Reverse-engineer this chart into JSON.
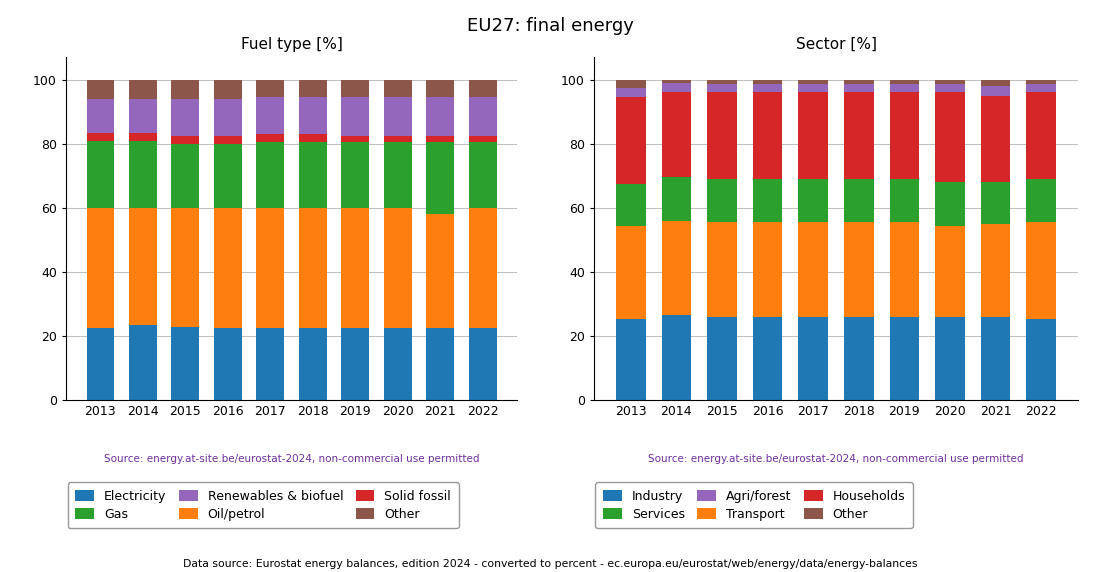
{
  "title": "EU27: final energy",
  "years": [
    2013,
    2014,
    2015,
    2016,
    2017,
    2018,
    2019,
    2020,
    2021,
    2022
  ],
  "fuel_title": "Fuel type [%]",
  "sector_title": "Sector [%]",
  "source_text": "Source: energy.at-site.be/eurostat-2024, non-commercial use permitted",
  "footer_text": "Data source: Eurostat energy balances, edition 2024 - converted to percent - ec.europa.eu/eurostat/web/energy/data/energy-balances",
  "fuel_data": {
    "Electricity": [
      22.5,
      23.5,
      23.0,
      22.5,
      22.5,
      22.5,
      22.5,
      22.5,
      22.5,
      22.5
    ],
    "Oil/petrol": [
      37.5,
      36.5,
      37.0,
      37.5,
      37.5,
      37.5,
      37.5,
      37.5,
      35.5,
      37.5
    ],
    "Gas": [
      21.0,
      21.0,
      20.0,
      20.0,
      20.5,
      20.5,
      20.5,
      20.5,
      22.5,
      20.5
    ],
    "Solid fossil": [
      2.5,
      2.5,
      2.5,
      2.5,
      2.5,
      2.5,
      2.0,
      2.0,
      2.0,
      2.0
    ],
    "Renewables & biofuel": [
      10.5,
      10.5,
      11.5,
      11.5,
      11.5,
      11.5,
      12.0,
      12.0,
      12.0,
      12.0
    ],
    "Other": [
      6.0,
      6.0,
      6.0,
      6.0,
      5.5,
      5.5,
      5.5,
      5.5,
      5.5,
      5.5
    ]
  },
  "fuel_colors": {
    "Electricity": "#1f77b4",
    "Oil/petrol": "#ff7f0e",
    "Gas": "#2ca02c",
    "Solid fossil": "#d62728",
    "Renewables & biofuel": "#9467bd",
    "Other": "#8c564b"
  },
  "fuel_legend_order": [
    "Electricity",
    "Gas",
    "Renewables & biofuel",
    "Oil/petrol",
    "Solid fossil",
    "Other"
  ],
  "sector_data": {
    "Industry": [
      25.5,
      26.5,
      26.0,
      26.0,
      26.0,
      26.0,
      26.0,
      26.0,
      26.0,
      25.5
    ],
    "Transport": [
      29.0,
      29.5,
      29.5,
      29.5,
      29.5,
      29.5,
      29.5,
      28.5,
      29.0,
      30.0
    ],
    "Services": [
      13.0,
      13.5,
      13.5,
      13.5,
      13.5,
      13.5,
      13.5,
      13.5,
      13.0,
      13.5
    ],
    "Households": [
      27.0,
      26.5,
      27.0,
      27.0,
      27.0,
      27.0,
      27.0,
      28.0,
      27.0,
      27.0
    ],
    "Agri/forest": [
      3.0,
      3.0,
      2.5,
      2.5,
      2.5,
      2.5,
      2.5,
      2.5,
      3.0,
      2.5
    ],
    "Other": [
      2.5,
      1.0,
      1.5,
      1.5,
      1.5,
      1.5,
      1.5,
      1.5,
      2.0,
      1.5
    ]
  },
  "sector_colors": {
    "Industry": "#1f77b4",
    "Transport": "#ff7f0e",
    "Services": "#2ca02c",
    "Households": "#d62728",
    "Agri/forest": "#9467bd",
    "Other": "#8c564b"
  },
  "sector_legend_order": [
    "Industry",
    "Services",
    "Agri/forest",
    "Transport",
    "Households",
    "Other"
  ]
}
